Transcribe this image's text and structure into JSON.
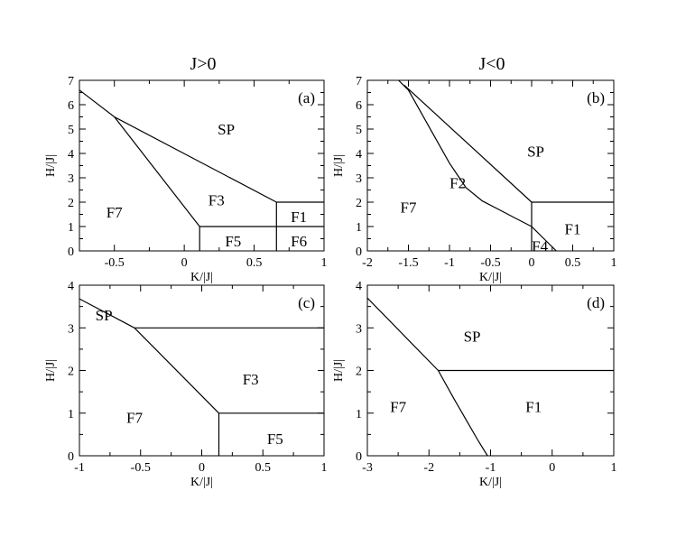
{
  "figure": {
    "column_titles": [
      "J>0",
      "J<0"
    ]
  },
  "chart_data": [
    {
      "type": "line",
      "tag": "(a)",
      "xlabel": "K/|J|",
      "ylabel": "H/|J|",
      "xlim": [
        -0.75,
        1
      ],
      "ylim": [
        0,
        7
      ],
      "xticks": [
        -0.5,
        0,
        0.5,
        1
      ],
      "xtick_labels": [
        "-0.5",
        "0",
        "0.5",
        "1"
      ],
      "yticks": [
        0,
        1,
        2,
        3,
        4,
        5,
        6,
        7
      ],
      "ytick_labels": [
        "0",
        "1",
        "2",
        "3",
        "4",
        "5",
        "6",
        "7"
      ],
      "grid": false,
      "boundaries": [
        {
          "points": [
            [
              -0.75,
              6.6
            ],
            [
              -0.5,
              5.5
            ]
          ]
        },
        {
          "points": [
            [
              -0.5,
              5.5
            ],
            [
              0.11,
              1.0
            ]
          ]
        },
        {
          "points": [
            [
              -0.5,
              5.5
            ],
            [
              0.66,
              2.0
            ]
          ]
        },
        {
          "points": [
            [
              0.66,
              2.0
            ],
            [
              1.0,
              2.0
            ]
          ]
        },
        {
          "points": [
            [
              0.11,
              1.0
            ],
            [
              1.0,
              1.0
            ]
          ]
        },
        {
          "points": [
            [
              0.11,
              1.0
            ],
            [
              0.11,
              0
            ]
          ]
        },
        {
          "points": [
            [
              0.66,
              2.0
            ],
            [
              0.66,
              0
            ]
          ]
        }
      ],
      "regions": [
        {
          "label": "SP",
          "x": 0.3,
          "y": 5.0
        },
        {
          "label": "F3",
          "x": 0.23,
          "y": 2.1
        },
        {
          "label": "F7",
          "x": -0.5,
          "y": 1.6
        },
        {
          "label": "F1",
          "x": 0.82,
          "y": 1.4
        },
        {
          "label": "F5",
          "x": 0.35,
          "y": 0.4
        },
        {
          "label": "F6",
          "x": 0.82,
          "y": 0.4
        }
      ]
    },
    {
      "type": "line",
      "tag": "(b)",
      "xlabel": "K/|J|",
      "ylabel": "H/|J|",
      "xlim": [
        -2,
        1
      ],
      "ylim": [
        0,
        7
      ],
      "xticks": [
        -2,
        -1.5,
        -1,
        -0.5,
        0,
        0.5,
        1
      ],
      "xtick_labels": [
        "-2",
        "-1.5",
        "-1",
        "-0.5",
        "0",
        "0.5",
        "1"
      ],
      "yticks": [
        0,
        1,
        2,
        3,
        4,
        5,
        6,
        7
      ],
      "ytick_labels": [
        "0",
        "1",
        "2",
        "3",
        "4",
        "5",
        "6",
        "7"
      ],
      "grid": false,
      "boundaries": [
        {
          "points": [
            [
              -1.62,
              7.0
            ],
            [
              -1.5,
              6.6
            ],
            [
              -1.2,
              4.8
            ],
            [
              -1.0,
              3.6
            ],
            [
              -0.8,
              2.6
            ],
            [
              -0.6,
              2.05
            ],
            [
              -0.4,
              1.7
            ],
            [
              -0.2,
              1.35
            ],
            [
              0,
              1.0
            ]
          ]
        },
        {
          "points": [
            [
              -1.55,
              6.8
            ],
            [
              0,
              2.0
            ]
          ]
        },
        {
          "points": [
            [
              0,
              2.0
            ],
            [
              1.0,
              2.0
            ]
          ]
        },
        {
          "points": [
            [
              0,
              2.0
            ],
            [
              0,
              0
            ]
          ]
        },
        {
          "points": [
            [
              0,
              1.0
            ],
            [
              0.15,
              0.5
            ],
            [
              0.3,
              0
            ]
          ]
        }
      ],
      "regions": [
        {
          "label": "SP",
          "x": 0.05,
          "y": 4.1
        },
        {
          "label": "F2",
          "x": -0.9,
          "y": 2.8
        },
        {
          "label": "F7",
          "x": -1.5,
          "y": 1.8
        },
        {
          "label": "F1",
          "x": 0.5,
          "y": 0.9
        },
        {
          "label": "F4",
          "x": 0.1,
          "y": 0.2
        }
      ]
    },
    {
      "type": "line",
      "tag": "(c)",
      "xlabel": "K/|J|",
      "ylabel": "H/|J|",
      "xlim": [
        -1,
        1
      ],
      "ylim": [
        0,
        4
      ],
      "xticks": [
        -1,
        -0.5,
        0,
        0.5,
        1
      ],
      "xtick_labels": [
        "-1",
        "-0.5",
        "0",
        "0.5",
        "1"
      ],
      "yticks": [
        0,
        1,
        2,
        3,
        4
      ],
      "ytick_labels": [
        "0",
        "1",
        "2",
        "3",
        "4"
      ],
      "grid": false,
      "boundaries": [
        {
          "points": [
            [
              -1.0,
              3.68
            ],
            [
              -0.55,
              3.0
            ]
          ]
        },
        {
          "points": [
            [
              -0.55,
              3.0
            ],
            [
              1.0,
              3.0
            ]
          ]
        },
        {
          "points": [
            [
              -0.55,
              3.0
            ],
            [
              0.14,
              1.0
            ]
          ]
        },
        {
          "points": [
            [
              0.14,
              1.0
            ],
            [
              1.0,
              1.0
            ]
          ]
        },
        {
          "points": [
            [
              0.14,
              1.0
            ],
            [
              0.14,
              0
            ]
          ]
        }
      ],
      "regions": [
        {
          "label": "SP",
          "x": -0.8,
          "y": 3.3
        },
        {
          "label": "F3",
          "x": 0.4,
          "y": 1.8
        },
        {
          "label": "F7",
          "x": -0.55,
          "y": 0.9
        },
        {
          "label": "F5",
          "x": 0.6,
          "y": 0.4
        }
      ]
    },
    {
      "type": "line",
      "tag": "(d)",
      "xlabel": "K/|J|",
      "ylabel": "H/|J|",
      "xlim": [
        -3,
        1
      ],
      "ylim": [
        0,
        4
      ],
      "xticks": [
        -3,
        -2,
        -1,
        0,
        1
      ],
      "xtick_labels": [
        "-3",
        "-2",
        "-1",
        "0",
        "1"
      ],
      "yticks": [
        0,
        1,
        2,
        3,
        4
      ],
      "ytick_labels": [
        "0",
        "1",
        "2",
        "3",
        "4"
      ],
      "grid": false,
      "boundaries": [
        {
          "points": [
            [
              -3.0,
              3.7
            ],
            [
              -1.85,
              2.0
            ]
          ]
        },
        {
          "points": [
            [
              -1.85,
              2.0
            ],
            [
              1.0,
              2.0
            ]
          ]
        },
        {
          "points": [
            [
              -1.85,
              2.0
            ],
            [
              -1.6,
              1.35
            ],
            [
              -1.4,
              0.85
            ],
            [
              -1.2,
              0.35
            ],
            [
              -1.05,
              0
            ]
          ]
        }
      ],
      "regions": [
        {
          "label": "SP",
          "x": -1.3,
          "y": 2.8
        },
        {
          "label": "F7",
          "x": -2.5,
          "y": 1.15
        },
        {
          "label": "F1",
          "x": -0.3,
          "y": 1.15
        }
      ]
    }
  ]
}
